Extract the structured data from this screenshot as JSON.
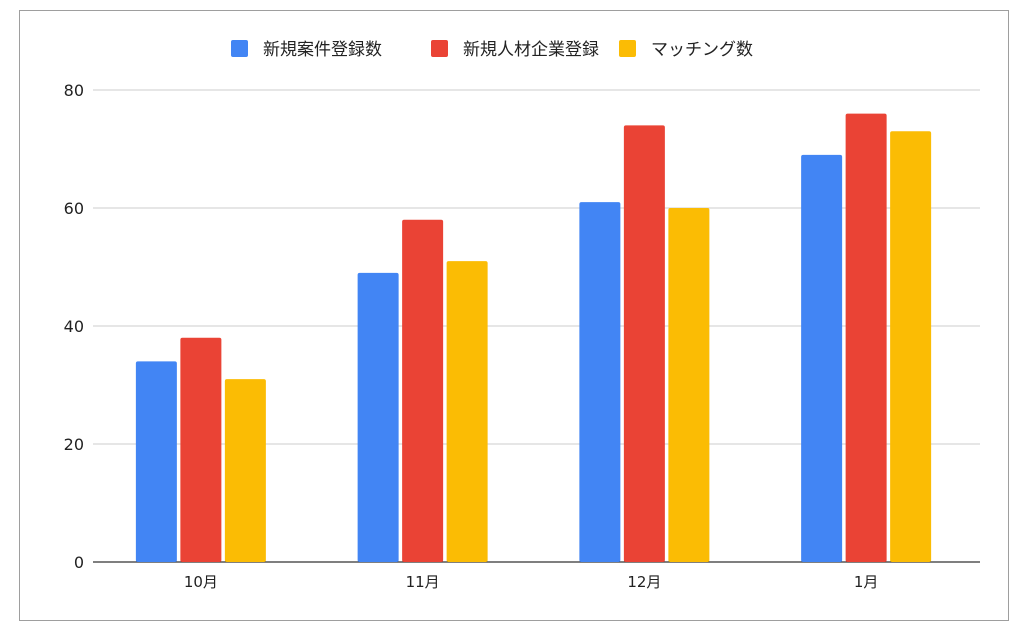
{
  "chart_data": {
    "type": "bar",
    "title": "",
    "xlabel": "",
    "ylabel": "",
    "categories": [
      "10月",
      "11月",
      "12月",
      "1月"
    ],
    "ylim": [
      0,
      80
    ],
    "yticks": [
      0,
      20,
      40,
      60,
      80
    ],
    "grid": true,
    "legend": "top",
    "series": [
      {
        "name": "新規案件登録数",
        "color": "#4285F4",
        "values": [
          34,
          49,
          61,
          69
        ]
      },
      {
        "name": "新規人材企業登録",
        "color": "#EA4335",
        "values": [
          38,
          58,
          74,
          76
        ]
      },
      {
        "name": "マッチング数",
        "color": "#FBBC04",
        "values": [
          31,
          51,
          60,
          73
        ]
      }
    ]
  }
}
